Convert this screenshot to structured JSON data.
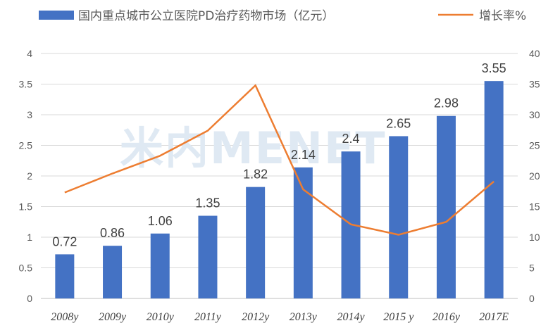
{
  "chart_data": {
    "type": "bar",
    "categories": [
      "2008y",
      "2009y",
      "2010y",
      "2011y",
      "2012y",
      "2013y",
      "2014y",
      "2015 y",
      "2016y",
      "2017E"
    ],
    "series": [
      {
        "name": "国内重点城市公立医院PD治疗药物市场（亿元）",
        "type": "bar",
        "axis": "left",
        "color": "#4472c4",
        "values": [
          0.72,
          0.86,
          1.06,
          1.35,
          1.82,
          2.14,
          2.4,
          2.65,
          2.98,
          3.55
        ],
        "labels": [
          "0.72",
          "0.86",
          "1.06",
          "1.35",
          "1.82",
          "2.14",
          "2.4",
          "2.65",
          "2.98",
          "3.55"
        ]
      },
      {
        "name": "增长率%",
        "type": "line",
        "axis": "right",
        "color": "#ed7d31",
        "values": [
          17.3,
          20.4,
          23.3,
          27.4,
          34.8,
          17.8,
          12.1,
          10.4,
          12.5,
          19.1
        ]
      }
    ],
    "y_left": {
      "min": 0,
      "max": 4,
      "ticks": [
        "0",
        "0.5",
        "1",
        "1.5",
        "2",
        "2.5",
        "3",
        "3.5",
        "4"
      ]
    },
    "y_right": {
      "min": 0,
      "max": 40,
      "ticks": [
        "0",
        "5",
        "10",
        "15",
        "20",
        "25",
        "30",
        "35",
        "40"
      ]
    },
    "legend_position": "top",
    "grid": true,
    "watermark": "米内MENET"
  }
}
